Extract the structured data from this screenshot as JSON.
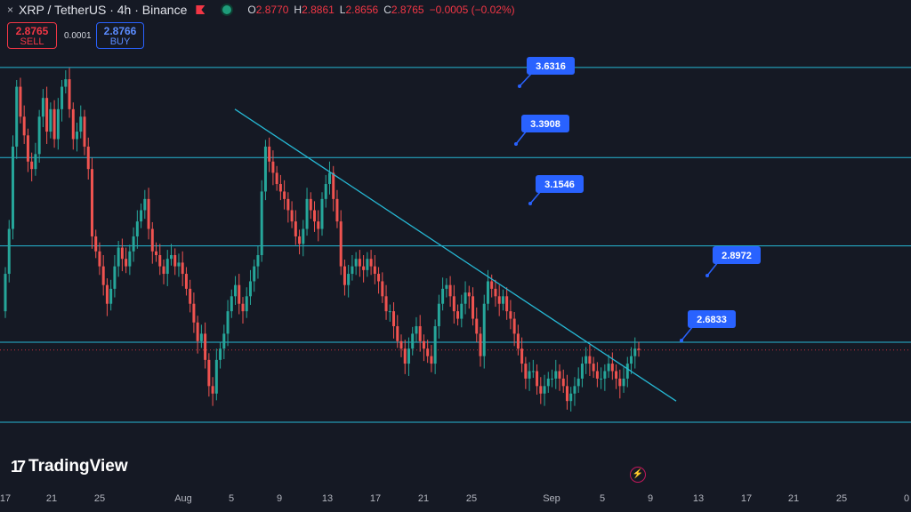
{
  "header": {
    "close_glyph": "×",
    "title": "XRP / TetherUS · 4h · Binance",
    "open_label": "O",
    "open": "2.8770",
    "high_label": "H",
    "high": "2.8861",
    "low_label": "L",
    "low": "2.8656",
    "close_label": "C",
    "close": "2.8765",
    "change": "−0.0005 (−0.02%)"
  },
  "trade": {
    "sell_price": "2.8765",
    "sell_label": "SELL",
    "spread": "0.0001",
    "buy_price": "2.8766",
    "buy_label": "BUY"
  },
  "brand": {
    "name": "TradingView",
    "mark": "17"
  },
  "colors": {
    "background": "#151924",
    "up": "#26a69a",
    "down": "#ef5350",
    "level_line": "#26b8d4",
    "label_bg": "#2962ff",
    "bearish": "#f23645"
  },
  "chart_data": {
    "type": "candlestick",
    "interval": "4h",
    "ylim": [
      2.51,
      3.75
    ],
    "x_ticks": [
      "17",
      "21",
      "25",
      "Aug",
      "5",
      "9",
      "13",
      "17",
      "21",
      "25",
      "Sep",
      "5",
      "9",
      "13",
      "17",
      "21",
      "25",
      "0"
    ],
    "levels": [
      {
        "price": 3.6316,
        "label": "3.6316"
      },
      {
        "price": 3.3908,
        "label": "3.3908"
      },
      {
        "price": 3.1546,
        "label": "3.1546"
      },
      {
        "price": 2.8972,
        "label": "2.8972"
      },
      {
        "price": 2.6833,
        "label": "2.6833"
      }
    ],
    "trendline": {
      "start": {
        "date": "Jul 31",
        "price": 3.52
      },
      "end": {
        "date": "Sep 11",
        "price": 2.74
      }
    },
    "current_price": 2.8765,
    "closes": [
      3.08,
      3.2,
      3.42,
      3.58,
      3.5,
      3.45,
      3.38,
      3.36,
      3.4,
      3.5,
      3.55,
      3.46,
      3.52,
      3.44,
      3.52,
      3.58,
      3.6,
      3.52,
      3.44,
      3.46,
      3.5,
      3.42,
      3.36,
      3.18,
      3.14,
      3.1,
      3.05,
      3.0,
      3.04,
      3.1,
      3.15,
      3.12,
      3.1,
      3.14,
      3.18,
      3.22,
      3.25,
      3.28,
      3.2,
      3.14,
      3.13,
      3.1,
      3.08,
      3.12,
      3.13,
      3.1,
      3.11,
      3.08,
      3.04,
      3.0,
      2.95,
      2.9,
      2.92,
      2.85,
      2.78,
      2.76,
      2.85,
      2.88,
      2.92,
      2.98,
      3.02,
      3.05,
      3.0,
      2.98,
      3.02,
      3.06,
      3.1,
      3.13,
      3.3,
      3.42,
      3.38,
      3.35,
      3.32,
      3.3,
      3.28,
      3.25,
      3.22,
      3.18,
      3.16,
      3.2,
      3.28,
      3.25,
      3.22,
      3.2,
      3.28,
      3.32,
      3.35,
      3.28,
      3.22,
      3.1,
      3.05,
      3.08,
      3.1,
      3.12,
      3.1,
      3.09,
      3.12,
      3.1,
      3.08,
      3.06,
      3.02,
      2.98,
      2.98,
      2.94,
      2.9,
      2.88,
      2.84,
      2.88,
      2.92,
      2.94,
      2.9,
      2.88,
      2.86,
      2.84,
      2.94,
      3.0,
      3.04,
      3.05,
      3.02,
      2.98,
      2.96,
      3.0,
      3.03,
      3.02,
      2.96,
      2.92,
      2.86,
      3.0,
      3.06,
      3.04,
      3.02,
      3.0,
      3.02,
      2.98,
      2.96,
      2.92,
      2.88,
      2.84,
      2.8,
      2.82,
      2.82,
      2.78,
      2.76,
      2.78,
      2.8,
      2.8,
      2.82,
      2.8,
      2.78,
      2.74,
      2.76,
      2.78,
      2.8,
      2.84,
      2.86,
      2.84,
      2.82,
      2.8,
      2.8,
      2.82,
      2.84,
      2.82,
      2.8,
      2.78,
      2.8,
      2.84,
      2.86,
      2.88,
      2.8765
    ]
  }
}
